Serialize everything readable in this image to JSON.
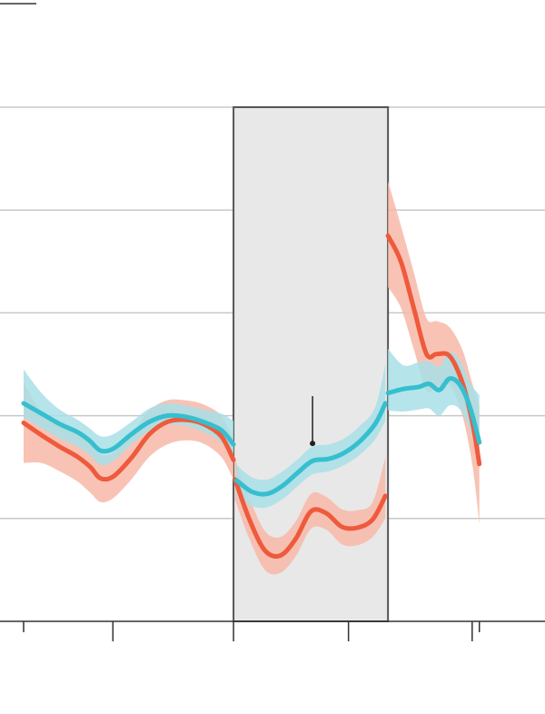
{
  "colors": {
    "teal_line": "#35bfcf",
    "teal_band": "#a8dfe6",
    "red_line": "#ef5a3c",
    "red_band": "#f7b9a8",
    "grid": "#c8c8c8",
    "axis": "#333333",
    "shade_fill": "#e8e8e8",
    "shade_stroke": "#555555",
    "marker": "#222222"
  },
  "chart_data": {
    "type": "line",
    "title": "",
    "xlabel": "",
    "ylabel": "",
    "xlim": [
      -0.4,
      10.3
    ],
    "ylim": [
      0,
      5
    ],
    "gridlines_y": [
      1,
      2,
      3,
      4
    ],
    "x_ticks": [
      0,
      1.74,
      4.09,
      6.33,
      8.74,
      8.88
    ],
    "x_tick_labels": [],
    "y_tick_labels": [],
    "shaded_region": {
      "x_start": 4.09,
      "x_end": 7.1,
      "y_top": 5
    },
    "annotation_marker": {
      "x": 5.63,
      "y": 1.73,
      "y_end": 2.19
    },
    "series": [
      {
        "color_key": "teal",
        "segments": [
          {
            "x": [
              0,
              0.35,
              0.7,
              1.05,
              1.28,
              1.5,
              1.75,
              2.1,
              2.45,
              2.8,
              3.15,
              3.5,
              3.85,
              4.09
            ],
            "y": [
              2.12,
              2.02,
              1.92,
              1.84,
              1.76,
              1.66,
              1.68,
              1.82,
              1.94,
              2.0,
              1.99,
              1.94,
              1.86,
              1.72
            ],
            "lower": [
              1.98,
              1.88,
              1.78,
              1.7,
              1.62,
              1.52,
              1.56,
              1.72,
              1.85,
              1.91,
              1.9,
              1.84,
              1.74,
              1.56
            ],
            "upper": [
              2.45,
              2.22,
              2.06,
              1.96,
              1.88,
              1.8,
              1.82,
              1.94,
              2.07,
              2.12,
              2.1,
              2.06,
              2.02,
              1.95
            ]
          },
          {
            "x": [
              4.15,
              4.45,
              4.75,
              5.05,
              5.35,
              5.63,
              5.95,
              6.25,
              6.55,
              6.85,
              7.05
            ],
            "y": [
              1.37,
              1.26,
              1.24,
              1.32,
              1.45,
              1.56,
              1.58,
              1.64,
              1.75,
              1.92,
              2.12
            ],
            "lower": [
              1.21,
              1.12,
              1.11,
              1.19,
              1.32,
              1.43,
              1.46,
              1.52,
              1.62,
              1.77,
              1.95
            ],
            "upper": [
              1.52,
              1.4,
              1.38,
              1.46,
              1.58,
              1.7,
              1.72,
              1.78,
              1.9,
              2.08,
              2.5
            ]
          },
          {
            "x": [
              7.1,
              7.4,
              7.7,
              7.9,
              8.1,
              8.3,
              8.5,
              8.7,
              8.88
            ],
            "y": [
              2.22,
              2.26,
              2.28,
              2.31,
              2.25,
              2.36,
              2.3,
              2.08,
              1.74
            ],
            "lower": [
              2.05,
              2.04,
              2.06,
              2.07,
              2.0,
              2.1,
              2.06,
              1.86,
              1.6
            ],
            "upper": [
              2.65,
              2.49,
              2.52,
              2.53,
              2.48,
              2.62,
              2.54,
              2.32,
              2.2
            ]
          }
        ]
      },
      {
        "color_key": "red",
        "segments": [
          {
            "x": [
              0,
              0.35,
              0.7,
              1.05,
              1.3,
              1.5,
              1.75,
              2.1,
              2.45,
              2.8,
              3.15,
              3.5,
              3.85,
              4.09
            ],
            "y": [
              1.93,
              1.81,
              1.7,
              1.6,
              1.5,
              1.39,
              1.41,
              1.59,
              1.82,
              1.94,
              1.96,
              1.92,
              1.8,
              1.57
            ],
            "lower": [
              1.54,
              1.54,
              1.46,
              1.36,
              1.25,
              1.16,
              1.2,
              1.38,
              1.6,
              1.72,
              1.76,
              1.73,
              1.6,
              1.38
            ],
            "upper": [
              2.32,
              2.04,
              1.95,
              1.85,
              1.75,
              1.62,
              1.64,
              1.82,
              2.05,
              2.15,
              2.15,
              2.11,
              2.0,
              1.76
            ]
          },
          {
            "x": [
              4.12,
              4.4,
              4.7,
              5.0,
              5.3,
              5.6,
              5.9,
              6.2,
              6.5,
              6.8,
              7.05
            ],
            "y": [
              1.38,
              0.99,
              0.69,
              0.64,
              0.8,
              1.07,
              1.05,
              0.92,
              0.91,
              0.99,
              1.22
            ],
            "lower": [
              1.18,
              0.8,
              0.5,
              0.47,
              0.63,
              0.9,
              0.89,
              0.75,
              0.74,
              0.82,
              1.0
            ],
            "upper": [
              1.58,
              1.2,
              0.88,
              0.82,
              0.97,
              1.24,
              1.21,
              1.09,
              1.08,
              1.16,
              1.6
            ]
          },
          {
            "x": [
              7.1,
              7.35,
              7.6,
              7.85,
              8.05,
              8.3,
              8.55,
              8.75,
              8.88
            ],
            "y": [
              3.75,
              3.5,
              3.05,
              2.6,
              2.6,
              2.58,
              2.32,
              1.92,
              1.53
            ],
            "lower": [
              3.25,
              3.05,
              2.65,
              2.25,
              2.28,
              2.3,
              2.0,
              1.5,
              0.95
            ],
            "upper": [
              4.28,
              3.85,
              3.4,
              2.95,
              2.92,
              2.86,
              2.64,
              2.3,
              2.1
            ]
          }
        ]
      }
    ]
  }
}
